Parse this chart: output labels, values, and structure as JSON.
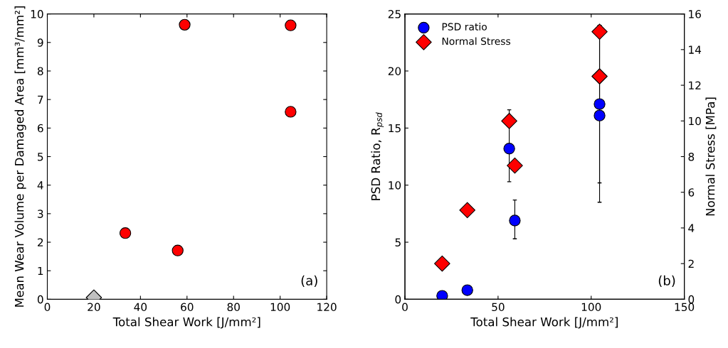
{
  "chart_data": [
    {
      "type": "scatter",
      "xlabel": "Total Shear Work [J/mm²]",
      "ylabel": "Mean Wear Volume per Damaged Area [mm³/mm²]",
      "xlim": [
        0,
        120
      ],
      "xticks": [
        0,
        20,
        40,
        60,
        80,
        100,
        120
      ],
      "ylim": [
        0,
        10
      ],
      "yticks": [
        0,
        1,
        2,
        3,
        4,
        5,
        6,
        7,
        8,
        9,
        10
      ],
      "grid": false,
      "legend": false,
      "annotations": [
        "(a)"
      ],
      "series": [
        {
          "color": "#c0c0c0",
          "marker": "diamond",
          "x": [
            20
          ],
          "values": [
            0.06
          ]
        },
        {
          "color": "#ff0000",
          "marker": "circle",
          "x": [
            33.5,
            56,
            59,
            104.5,
            104.5
          ],
          "values": [
            2.32,
            1.71,
            9.62,
            9.6,
            6.57
          ]
        }
      ]
    },
    {
      "type": "scatter",
      "xlabel": "Total Shear Work [J/mm²]",
      "ylabel": "PSD Ratio, R$_{psd}$",
      "y2label": "Normal Stress [MPa]",
      "xlim": [
        0,
        150
      ],
      "xticks": [
        0,
        50,
        100,
        150
      ],
      "ylim": [
        0,
        25
      ],
      "yticks": [
        0,
        5,
        10,
        15,
        20,
        25
      ],
      "y2lim": [
        0,
        16
      ],
      "y2ticks": [
        0,
        2,
        4,
        6,
        8,
        10,
        12,
        14,
        16
      ],
      "grid": false,
      "legend": "top left",
      "annotations": [
        "(b)"
      ],
      "series": [
        {
          "name": "PSD ratio",
          "color": "#0000ff",
          "marker": "circle",
          "x": [
            20,
            33.5,
            56,
            59,
            104.5,
            104.5
          ],
          "values": [
            0.3,
            0.8,
            13.2,
            6.9,
            17.1,
            16.1
          ],
          "errors": [
            null,
            null,
            [
              10.3,
              16.6
            ],
            [
              5.3,
              8.7
            ],
            [
              10.2,
              24.0
            ],
            [
              8.5,
              24.0
            ]
          ]
        },
        {
          "name": "Normal Stress",
          "color": "#ff0000",
          "marker": "diamond",
          "axis": "y2",
          "x": [
            20,
            33.5,
            56,
            59,
            104.5,
            104.5
          ],
          "values": [
            2,
            5,
            10,
            7.5,
            12.5,
            15
          ]
        }
      ]
    }
  ]
}
